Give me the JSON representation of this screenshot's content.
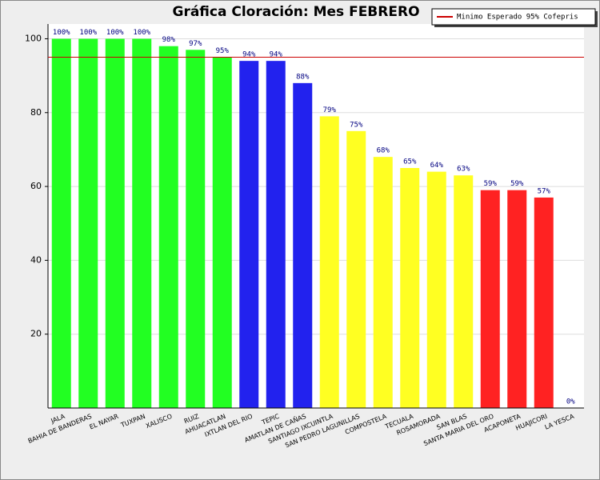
{
  "chart_data": {
    "type": "bar",
    "title": "Gráfica Cloración: Mes FEBRERO",
    "categories": [
      "JALA",
      "BAHIA DE BANDERAS",
      "EL NAYAR",
      "TUXPAN",
      "XALISCO",
      "RUIZ",
      "AHUACATLAN",
      "IXTLAN DEL RIO",
      "TEPIC",
      "AMATLAN DE CAÑAS",
      "SANTIAGO IXCUINTLA",
      "SAN PEDRO LAGUNILLAS",
      "COMPOSTELA",
      "TECUALA",
      "ROSAMORADA",
      "SAN BLAS",
      "SANTA MARIA DEL ORO",
      "ACAPONETA",
      "HUAJICORI",
      "LA YESCA"
    ],
    "values": [
      100,
      100,
      100,
      100,
      98,
      97,
      95,
      94,
      94,
      88,
      79,
      75,
      68,
      65,
      64,
      63,
      59,
      59,
      57,
      0
    ],
    "value_labels": [
      "100%",
      "100%",
      "100%",
      "100%",
      "98%",
      "97%",
      "95%",
      "94%",
      "94%",
      "88%",
      "79%",
      "75%",
      "68%",
      "65%",
      "64%",
      "63%",
      "59%",
      "59%",
      "57%",
      "0%"
    ],
    "colors": [
      "#22ff22",
      "#22ff22",
      "#22ff22",
      "#22ff22",
      "#22ff22",
      "#22ff22",
      "#22ff22",
      "#2222ee",
      "#2222ee",
      "#2222ee",
      "#ffff22",
      "#ffff22",
      "#ffff22",
      "#ffff22",
      "#ffff22",
      "#ffff22",
      "#ff2222",
      "#ff2222",
      "#ff2222",
      "#ff2222"
    ],
    "reference_line": {
      "value": 95,
      "label": "Minimo Esperado 95% Cofepris",
      "color": "#cc0000"
    },
    "ylim": [
      0,
      104
    ],
    "yticks": [
      20,
      40,
      60,
      80,
      100
    ],
    "grid": true,
    "legend": "top-right"
  }
}
